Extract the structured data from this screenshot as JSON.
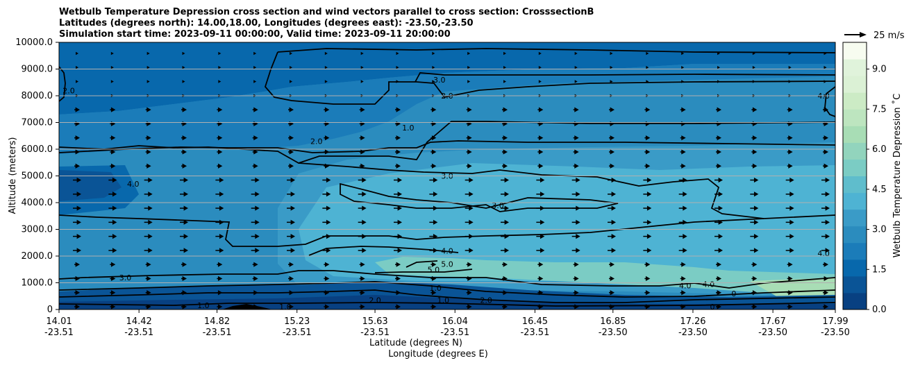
{
  "chart_data": {
    "type": "heatmap",
    "title_lines": [
      "Wetbulb Temperature Depression cross section and wind vectors parallel to cross section: CrosssectionB",
      "Latitudes (degrees north): 14.00,18.00, Longitudes (degrees east): -23.50,-23.50",
      "Simulation start time: 2023-09-11 00:00:00, Valid time: 2023-09-11 20:00:00"
    ],
    "ylabel": "Altitude (meters)",
    "xlabel_lat": "Latitude (degrees N)",
    "xlabel_lon": "Longitude (degrees E)",
    "ylim": [
      0,
      10000
    ],
    "y_ticks": [
      "0",
      "1000.0",
      "2000.0",
      "3000.0",
      "4000.0",
      "5000.0",
      "6000.0",
      "7000.0",
      "8000.0",
      "9000.0",
      "10000.0"
    ],
    "x_ticks": [
      {
        "lat": "14.01",
        "lon": "-23.51"
      },
      {
        "lat": "14.42",
        "lon": "-23.51"
      },
      {
        "lat": "14.82",
        "lon": "-23.51"
      },
      {
        "lat": "15.23",
        "lon": "-23.51"
      },
      {
        "lat": "15.63",
        "lon": "-23.51"
      },
      {
        "lat": "16.04",
        "lon": "-23.51"
      },
      {
        "lat": "16.45",
        "lon": "-23.51"
      },
      {
        "lat": "16.85",
        "lon": "-23.50"
      },
      {
        "lat": "17.26",
        "lon": "-23.50"
      },
      {
        "lat": "17.67",
        "lon": "-23.50"
      },
      {
        "lat": "17.99",
        "lon": "-23.50"
      }
    ],
    "colorbar": {
      "label": "Wetbulb Temperature Depression ˚C",
      "range": [
        0,
        10
      ],
      "ticks": [
        "0.0",
        "1.5",
        "3.0",
        "4.5",
        "6.0",
        "7.5",
        "9.0"
      ],
      "colors": [
        "#084081",
        "#0a5496",
        "#0868ac",
        "#1b7cb9",
        "#2b8cbe",
        "#3a9bc7",
        "#4eb3d3",
        "#5fbdcc",
        "#7bccc4",
        "#92d4bd",
        "#a8ddb5",
        "#bde5bf",
        "#ccebc5",
        "#dbf1d5",
        "#e0f3db",
        "#f7fcf0"
      ]
    },
    "quiver_key": "25 m/s",
    "contour_labels": [
      {
        "text": "2.0",
        "lat": 14.06,
        "alt": 8200
      },
      {
        "text": "3.0",
        "lat": 15.96,
        "alt": 8600
      },
      {
        "text": "2.0",
        "lat": 16.0,
        "alt": 8000
      },
      {
        "text": "1.0",
        "lat": 15.8,
        "alt": 6800
      },
      {
        "text": "2.0",
        "lat": 15.33,
        "alt": 6300
      },
      {
        "text": "3.0",
        "lat": 16.0,
        "alt": 5000
      },
      {
        "text": "3.0",
        "lat": 16.26,
        "alt": 3900
      },
      {
        "text": "4.0",
        "lat": 16.0,
        "alt": 2200
      },
      {
        "text": "5.0",
        "lat": 16.0,
        "alt": 1700
      },
      {
        "text": "5.0",
        "lat": 15.93,
        "alt": 1500
      },
      {
        "text": "1.0",
        "lat": 15.94,
        "alt": 800
      },
      {
        "text": "1.0",
        "lat": 15.98,
        "alt": 350
      },
      {
        "text": "2.0",
        "lat": 15.63,
        "alt": 350
      },
      {
        "text": "2.0",
        "lat": 16.2,
        "alt": 350
      },
      {
        "text": "1.0",
        "lat": 14.75,
        "alt": 150
      },
      {
        "text": "1.0",
        "lat": 15.17,
        "alt": 100
      },
      {
        "text": "3.0",
        "lat": 14.35,
        "alt": 1200
      },
      {
        "text": "4.0",
        "lat": 14.39,
        "alt": 4700
      },
      {
        "text": "4.0",
        "lat": 17.22,
        "alt": 900
      },
      {
        "text": "4.0",
        "lat": 17.34,
        "alt": 950
      },
      {
        "text": "4.0",
        "lat": 17.93,
        "alt": 8000
      },
      {
        "text": "4.0",
        "lat": 17.93,
        "alt": 2100
      },
      {
        "text": "0",
        "lat": 17.36,
        "alt": 100
      },
      {
        "text": "0",
        "lat": 17.47,
        "alt": 600
      }
    ]
  }
}
